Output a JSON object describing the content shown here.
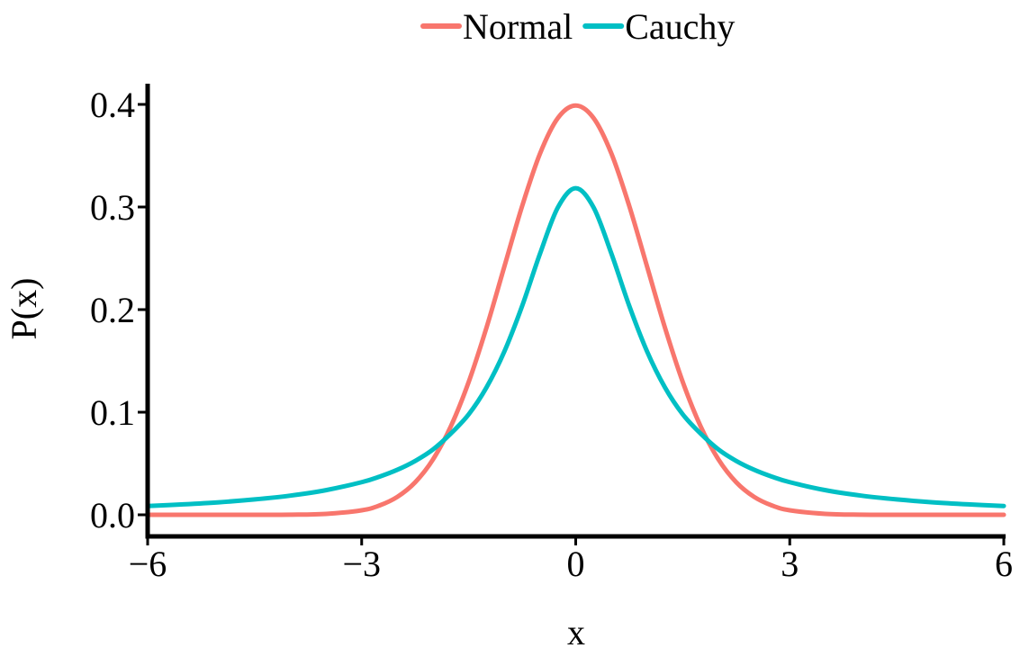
{
  "chart_data": {
    "type": "line",
    "title": "",
    "xlabel": "x",
    "ylabel": "P(x)",
    "xlim": [
      -6,
      6
    ],
    "ylim": [
      0,
      0.4
    ],
    "x_ticks": [
      -6,
      -3,
      0,
      3,
      6
    ],
    "x_tick_labels": [
      "−6",
      "−3",
      "0",
      "3",
      "6"
    ],
    "y_ticks": [
      0,
      0.1,
      0.2,
      0.3,
      0.4
    ],
    "y_tick_labels": [
      "0.0",
      "0.1",
      "0.2",
      "0.3",
      "0.4"
    ],
    "grid": false,
    "legend_position": "top",
    "series": [
      {
        "name": "Normal",
        "color": "#F8766D",
        "x": [
          -6,
          -5.5,
          -5,
          -4.5,
          -4,
          -3.5,
          -3,
          -2.75,
          -2.5,
          -2.25,
          -2,
          -1.75,
          -1.5,
          -1.25,
          -1,
          -0.75,
          -0.5,
          -0.25,
          0,
          0.25,
          0.5,
          0.75,
          1,
          1.25,
          1.5,
          1.75,
          2,
          2.25,
          2.5,
          2.75,
          3,
          3.5,
          4,
          4.5,
          5,
          5.5,
          6
        ],
        "y": [
          0.0,
          0.0,
          0.0,
          0.0,
          0.0001,
          0.0009,
          0.0044,
          0.0091,
          0.0175,
          0.0317,
          0.054,
          0.0863,
          0.1295,
          0.1826,
          0.242,
          0.3011,
          0.3521,
          0.3867,
          0.3989,
          0.3867,
          0.3521,
          0.3011,
          0.242,
          0.1826,
          0.1295,
          0.0863,
          0.054,
          0.0317,
          0.0175,
          0.0091,
          0.0044,
          0.0009,
          0.0001,
          0.0,
          0.0,
          0.0,
          0.0
        ]
      },
      {
        "name": "Cauchy",
        "color": "#00BFC4",
        "x": [
          -6,
          -5.5,
          -5,
          -4.5,
          -4,
          -3.5,
          -3,
          -2.75,
          -2.5,
          -2.25,
          -2,
          -1.75,
          -1.5,
          -1.25,
          -1,
          -0.75,
          -0.5,
          -0.25,
          0,
          0.25,
          0.5,
          0.75,
          1,
          1.25,
          1.5,
          1.75,
          2,
          2.25,
          2.5,
          2.75,
          3,
          3.5,
          4,
          4.5,
          5,
          5.5,
          6
        ],
        "y": [
          0.0086,
          0.0102,
          0.0122,
          0.015,
          0.0187,
          0.024,
          0.0318,
          0.0372,
          0.0439,
          0.0525,
          0.0637,
          0.0792,
          0.0979,
          0.1242,
          0.1592,
          0.2037,
          0.2546,
          0.2996,
          0.3183,
          0.2996,
          0.2546,
          0.2037,
          0.1592,
          0.1242,
          0.0979,
          0.0792,
          0.0637,
          0.0525,
          0.0439,
          0.0372,
          0.0318,
          0.024,
          0.0187,
          0.015,
          0.0122,
          0.0102,
          0.0086
        ]
      }
    ]
  }
}
